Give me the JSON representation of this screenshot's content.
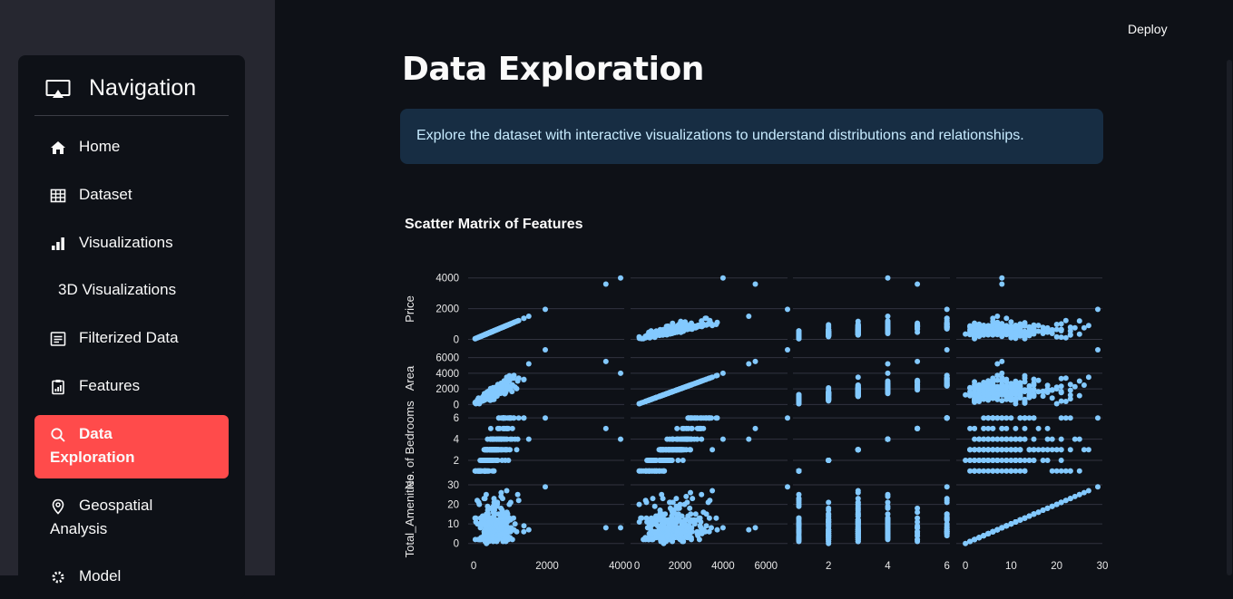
{
  "header": {
    "deploy_label": "Deploy"
  },
  "sidebar": {
    "title": "Navigation",
    "items": [
      {
        "label": "Home",
        "icon": "home-icon"
      },
      {
        "label": "Dataset",
        "icon": "table-icon"
      },
      {
        "label": "Visualizations",
        "icon": "bar-chart-icon"
      },
      {
        "label": "3D Visualizations",
        "icon": ""
      },
      {
        "label": "Filterized Data",
        "icon": "filter-list-icon"
      },
      {
        "label": "Features",
        "icon": "clipboard-chart-icon"
      },
      {
        "label": "Data Exploration",
        "icon": "search-icon",
        "active": true
      },
      {
        "label": "Geospatial Analysis",
        "icon": "location-pin-icon"
      },
      {
        "label": "Model",
        "icon": "gear-icon"
      }
    ]
  },
  "main": {
    "title": "Data Exploration",
    "info": "Explore the dataset with interactive visualizations to understand distributions and relationships.",
    "chart_title": "Scatter Matrix of Features"
  },
  "chart_data": {
    "type": "scatter",
    "title": "Scatter Matrix of Features",
    "color": "#83c9ff",
    "dimensions": [
      "Price",
      "Area",
      "No. of Bedrooms",
      "Total_Amenities"
    ],
    "axis_ticks": {
      "Price": [
        0,
        2000,
        4000
      ],
      "Area": [
        0,
        2000,
        4000,
        6000
      ],
      "No. of Bedrooms": [
        2,
        4,
        6
      ],
      "Total_Amenities": [
        0,
        10,
        20,
        30
      ]
    },
    "bottom_ticks": {
      "Price": [
        0,
        2000,
        4000
      ],
      "Area": [
        0,
        2000,
        4000,
        6000
      ],
      "No. of Bedrooms": [
        2,
        4,
        6
      ],
      "Total_Amenities": [
        0,
        10,
        20,
        30
      ]
    },
    "ranges": {
      "Price": [
        -150,
        4100
      ],
      "Area": [
        -300,
        7000
      ],
      "No. of Bedrooms": [
        0.8,
        6.1
      ],
      "Total_Amenities": [
        -2,
        30
      ]
    },
    "notable_points": [
      {
        "Price": 4000,
        "Area": 4000,
        "No. of Bedrooms": 4,
        "Total_Amenities": 8
      },
      {
        "Price": 3600,
        "Area": 5500,
        "No. of Bedrooms": 5,
        "Total_Amenities": 8
      },
      {
        "Price": 1950,
        "Area": 7000,
        "No. of Bedrooms": 6,
        "Total_Amenities": 29
      },
      {
        "Price": 1500,
        "Area": 5200,
        "No. of Bedrooms": 4,
        "Total_Amenities": 7
      },
      {
        "Price": 900,
        "Area": 3500,
        "No. of Bedrooms": 3,
        "Total_Amenities": 27
      },
      {
        "Price": 1200,
        "Area": 3000,
        "No. of Bedrooms": 4,
        "Total_Amenities": 25
      },
      {
        "Price": 600,
        "Area": 1500,
        "No. of Bedrooms": 3,
        "Total_Amenities": 10
      },
      {
        "Price": 300,
        "Area": 900,
        "No. of Bedrooms": 1,
        "Total_Amenities": 3
      }
    ],
    "grid": true
  }
}
